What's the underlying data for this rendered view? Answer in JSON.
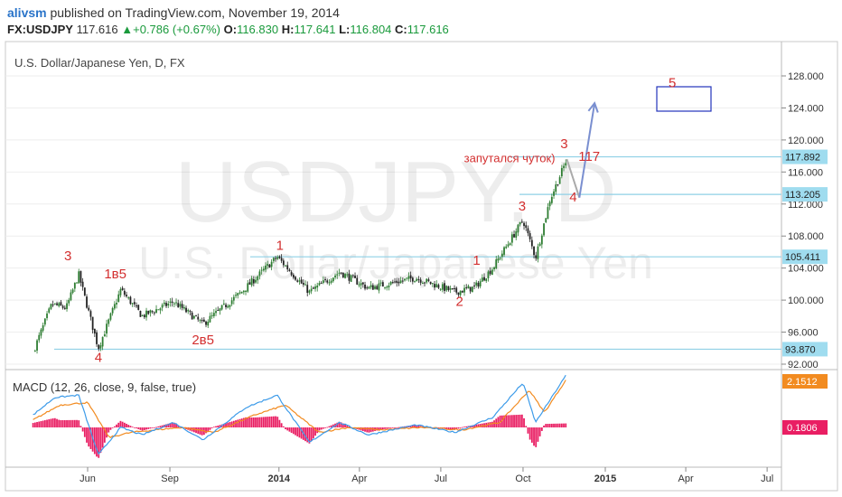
{
  "header": {
    "user": "alivsm",
    "published": "published on TradingView.com, November 19, 2014",
    "symbol": "FX:USDJPY",
    "last": "117.616",
    "change_arrow": "▲",
    "change": "+0.786 (+0.67%)",
    "o_label": "O:",
    "o": "116.830",
    "h_label": "H:",
    "h": "117.641",
    "l_label": "L:",
    "l": "116.804",
    "c_label": "C:",
    "c": "117.616"
  },
  "chart_title": "U.S. Dollar/Japanese Yen, D, FX",
  "watermark": {
    "symbol": "USDJPY, D",
    "name": "U.S. Dollar/Japanese Yen"
  },
  "macd_label": "MACD (12, 26, close, 9, false, true)",
  "colors": {
    "up": "#2e7d32",
    "down": "#222222",
    "hline": "#8fd0e6",
    "wave_label": "#d32f2f",
    "macd_line": "#3d9be9",
    "signal_line": "#f28b20",
    "histogram": "#e91e63",
    "projection": "#7a8fd0",
    "label_box": "#9fdcef"
  },
  "chart_data": {
    "type": "candlestick",
    "title": "U.S. Dollar/Japanese Yen, D, FX",
    "x_tick_labels": [
      "Jun",
      "Sep",
      "2014",
      "Apr",
      "Jul",
      "Oct",
      "2015",
      "Apr",
      "Jul"
    ],
    "y_tick_labels": [
      "128.000",
      "124.000",
      "120.000",
      "116.000",
      "112.000",
      "108.000",
      "104.000",
      "100.000",
      "96.000",
      "92.000"
    ],
    "ylim": [
      91.5,
      130.5
    ],
    "price_series": [
      [
        "2013-04-01",
        93.5
      ],
      [
        "2013-04-22",
        99.5
      ],
      [
        "2013-05-08",
        99.0
      ],
      [
        "2013-05-22",
        103.2
      ],
      [
        "2013-06-13",
        94.0
      ],
      [
        "2013-07-08",
        101.3
      ],
      [
        "2013-08-01",
        98.0
      ],
      [
        "2013-09-05",
        99.8
      ],
      [
        "2013-10-08",
        97.0
      ],
      [
        "2013-11-20",
        101.0
      ],
      [
        "2013-12-30",
        105.4
      ],
      [
        "2014-02-04",
        101.0
      ],
      [
        "2014-03-10",
        103.5
      ],
      [
        "2014-04-11",
        101.5
      ],
      [
        "2014-06-03",
        102.8
      ],
      [
        "2014-07-17",
        101.0
      ],
      [
        "2014-08-08",
        101.6
      ],
      [
        "2014-08-28",
        104.0
      ],
      [
        "2014-10-01",
        110.0
      ],
      [
        "2014-10-15",
        105.3
      ],
      [
        "2014-10-31",
        112.5
      ],
      [
        "2014-11-19",
        117.6
      ]
    ],
    "horizontal_levels": [
      117.892,
      113.205,
      105.411,
      93.87
    ],
    "last_price": 117.616,
    "wave_labels": [
      {
        "text": "3",
        "x": "2013-05-10",
        "y": 105.0
      },
      {
        "text": "1в5",
        "x": "2013-07-02",
        "y": 102.7
      },
      {
        "text": "4",
        "x": "2013-06-13",
        "y": 92.3
      },
      {
        "text": "2в5",
        "x": "2013-10-08",
        "y": 94.5
      },
      {
        "text": "1",
        "x": "2014-01-02",
        "y": 106.3
      },
      {
        "text": "1",
        "x": "2014-08-10",
        "y": 104.4
      },
      {
        "text": "2",
        "x": "2014-07-22",
        "y": 99.3
      },
      {
        "text": "3",
        "x": "2014-09-30",
        "y": 111.2
      },
      {
        "text": "3",
        "x": "2014-11-16",
        "y": 119.0
      },
      {
        "text": "4",
        "x": "2014-11-26",
        "y": 112.3
      },
      {
        "text": "5",
        "x": "2015-03-17",
        "y": 126.6
      },
      {
        "text": "117",
        "x": "2014-12-14",
        "y": 117.4
      }
    ],
    "annotation": {
      "text": "запутался чуток)",
      "x": "2014-09-16",
      "y": 117.2
    },
    "projection": [
      [
        "2014-11-19",
        117.6
      ],
      [
        "2014-12-03",
        112.8
      ],
      [
        "2014-12-20",
        124.6
      ]
    ],
    "macd": {
      "label": "MACD (12, 26, close, 9, false, true)",
      "macd_value": "2.1512",
      "histogram_value": "0.1806",
      "macd_series": [
        [
          "2013-04-01",
          0.5
        ],
        [
          "2013-04-25",
          1.2
        ],
        [
          "2013-05-22",
          1.3
        ],
        [
          "2013-06-13",
          -1.1
        ],
        [
          "2013-07-08",
          0.0
        ],
        [
          "2013-08-01",
          -0.3
        ],
        [
          "2013-09-05",
          0.2
        ],
        [
          "2013-10-08",
          -0.5
        ],
        [
          "2013-11-25",
          0.8
        ],
        [
          "2013-12-30",
          1.3
        ],
        [
          "2014-02-04",
          -0.6
        ],
        [
          "2014-03-10",
          0.2
        ],
        [
          "2014-04-11",
          -0.3
        ],
        [
          "2014-06-03",
          0.1
        ],
        [
          "2014-07-17",
          -0.2
        ],
        [
          "2014-08-28",
          0.4
        ],
        [
          "2014-10-01",
          1.8
        ],
        [
          "2014-10-15",
          0.2
        ],
        [
          "2014-11-19",
          2.15
        ]
      ],
      "signal_series": [
        [
          "2013-04-01",
          0.3
        ],
        [
          "2013-05-01",
          0.9
        ],
        [
          "2013-06-01",
          1.0
        ],
        [
          "2013-06-25",
          -0.4
        ],
        [
          "2013-07-20",
          -0.2
        ],
        [
          "2013-08-15",
          -0.1
        ],
        [
          "2013-09-15",
          0.0
        ],
        [
          "2013-10-20",
          -0.2
        ],
        [
          "2013-12-05",
          0.5
        ],
        [
          "2014-01-08",
          0.9
        ],
        [
          "2014-02-15",
          -0.2
        ],
        [
          "2014-03-20",
          0.0
        ],
        [
          "2014-04-25",
          -0.1
        ],
        [
          "2014-06-10",
          0.0
        ],
        [
          "2014-07-25",
          -0.1
        ],
        [
          "2014-09-05",
          0.2
        ],
        [
          "2014-10-08",
          1.5
        ],
        [
          "2014-10-25",
          0.6
        ],
        [
          "2014-11-19",
          1.97
        ]
      ]
    }
  }
}
